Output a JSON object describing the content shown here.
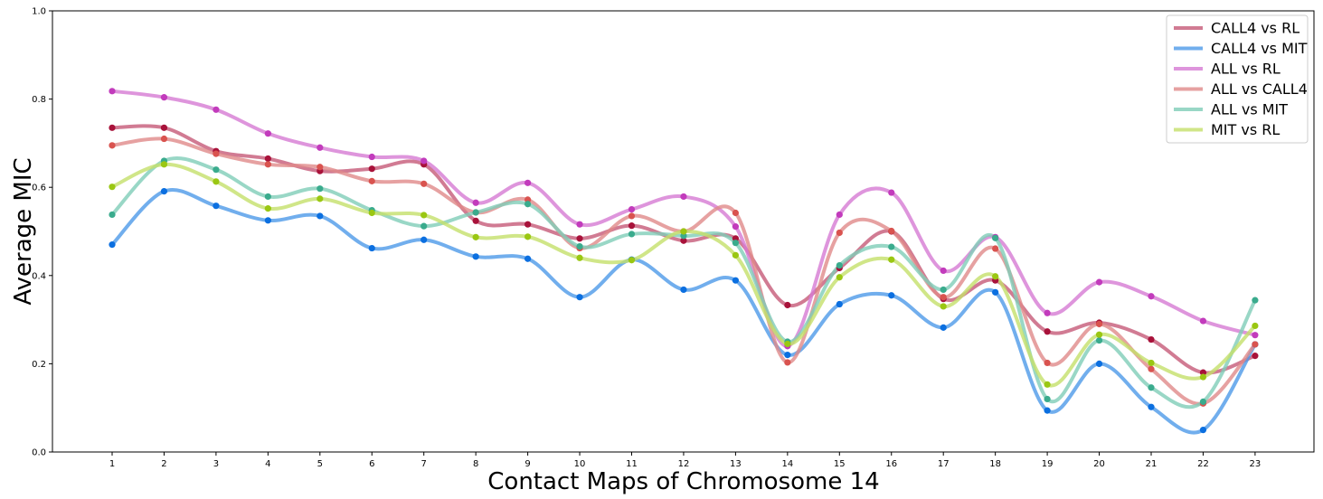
{
  "chart_data": {
    "type": "line",
    "xlabel": "Contact Maps of Chromosome 14",
    "ylabel": "Average MIC",
    "x": [
      1,
      2,
      3,
      4,
      5,
      6,
      7,
      8,
      9,
      10,
      11,
      12,
      13,
      14,
      15,
      16,
      17,
      18,
      19,
      20,
      21,
      22,
      23
    ],
    "ylim": [
      0,
      1
    ],
    "yticks": [
      "0.0",
      "0.2",
      "0.4",
      "0.6",
      "0.8",
      "1.0"
    ],
    "legend_position": "top-right",
    "grid": false,
    "series": [
      {
        "name": "CALL4 vs RL",
        "line_color": "#c55a78",
        "point_color": "#a8123a",
        "values": [
          0.735,
          0.735,
          0.682,
          0.665,
          0.637,
          0.642,
          0.652,
          0.524,
          0.516,
          0.484,
          0.513,
          0.479,
          0.484,
          0.333,
          0.417,
          0.5,
          0.347,
          0.389,
          0.273,
          0.293,
          0.255,
          0.18,
          0.218
        ]
      },
      {
        "name": "CALL4 vs MIT",
        "line_color": "#4d9ae8",
        "point_color": "#0b6fe0",
        "values": [
          0.47,
          0.591,
          0.558,
          0.525,
          0.535,
          0.462,
          0.481,
          0.443,
          0.438,
          0.351,
          0.436,
          0.368,
          0.389,
          0.22,
          0.335,
          0.355,
          0.282,
          0.362,
          0.094,
          0.2,
          0.102,
          0.05,
          0.244
        ]
      },
      {
        "name": "ALL vs RL",
        "line_color": "#d67ad3",
        "point_color": "#c23bbc",
        "values": [
          0.818,
          0.804,
          0.776,
          0.722,
          0.69,
          0.669,
          0.66,
          0.565,
          0.61,
          0.516,
          0.55,
          0.579,
          0.511,
          0.24,
          0.538,
          0.588,
          0.411,
          0.487,
          0.315,
          0.385,
          0.353,
          0.297,
          0.265
        ]
      },
      {
        "name": "ALL vs CALL4",
        "line_color": "#e08a8a",
        "point_color": "#d9534f",
        "values": [
          0.695,
          0.71,
          0.676,
          0.652,
          0.646,
          0.614,
          0.608,
          0.543,
          0.572,
          0.462,
          0.535,
          0.5,
          0.542,
          0.203,
          0.497,
          0.501,
          0.351,
          0.461,
          0.202,
          0.29,
          0.188,
          0.11,
          0.244
        ]
      },
      {
        "name": "ALL vs MIT",
        "line_color": "#7fcdb8",
        "point_color": "#3aab8d",
        "values": [
          0.538,
          0.66,
          0.64,
          0.579,
          0.597,
          0.548,
          0.512,
          0.543,
          0.562,
          0.466,
          0.494,
          0.49,
          0.474,
          0.25,
          0.423,
          0.465,
          0.368,
          0.485,
          0.12,
          0.253,
          0.146,
          0.114,
          0.344
        ]
      },
      {
        "name": "MIT vs RL",
        "line_color": "#c4e06a",
        "point_color": "#9ac712",
        "values": [
          0.601,
          0.652,
          0.613,
          0.552,
          0.574,
          0.542,
          0.537,
          0.487,
          0.488,
          0.44,
          0.435,
          0.5,
          0.446,
          0.245,
          0.396,
          0.436,
          0.33,
          0.398,
          0.153,
          0.266,
          0.202,
          0.17,
          0.286
        ]
      }
    ]
  }
}
